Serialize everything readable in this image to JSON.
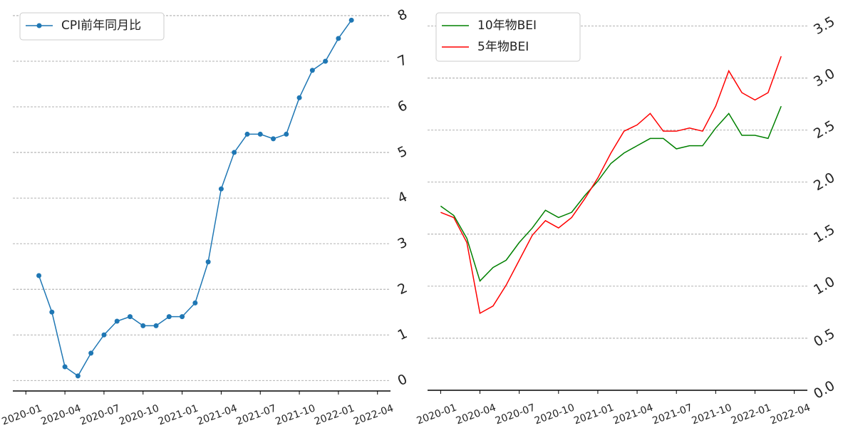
{
  "chart_data": [
    {
      "type": "line",
      "legend": "upper left",
      "grid": true,
      "x": [
        "2020-02",
        "2020-03",
        "2020-04",
        "2020-05",
        "2020-06",
        "2020-07",
        "2020-08",
        "2020-09",
        "2020-10",
        "2020-11",
        "2020-12",
        "2021-01",
        "2021-02",
        "2021-03",
        "2021-04",
        "2021-05",
        "2021-06",
        "2021-07",
        "2021-08",
        "2021-09",
        "2021-10",
        "2021-11",
        "2021-12",
        "2022-01",
        "2022-02"
      ],
      "series": [
        {
          "name": "CPI前年同月比",
          "color": "#1f77b4",
          "marker": "o",
          "values": [
            2.3,
            1.5,
            0.3,
            0.1,
            0.6,
            1.0,
            1.3,
            1.4,
            1.2,
            1.2,
            1.4,
            1.4,
            1.7,
            2.6,
            4.2,
            5.0,
            5.4,
            5.4,
            5.3,
            5.4,
            6.2,
            6.8,
            7.0,
            7.5,
            7.9
          ]
        }
      ],
      "xlim": [
        "2019-12",
        "2022-05"
      ],
      "xticks": [
        "2020-01",
        "2020-04",
        "2020-07",
        "2020-10",
        "2021-01",
        "2021-04",
        "2021-07",
        "2021-10",
        "2022-01",
        "2022-04"
      ],
      "ylim": [
        -0.23,
        8.03
      ],
      "yticks": [
        0,
        1,
        2,
        3,
        4,
        5,
        6,
        7,
        8
      ]
    },
    {
      "type": "line",
      "legend": "upper left",
      "grid": true,
      "x": [
        "2020-01",
        "2020-02",
        "2020-03",
        "2020-04",
        "2020-05",
        "2020-06",
        "2020-07",
        "2020-08",
        "2020-09",
        "2020-10",
        "2020-11",
        "2020-12",
        "2021-01",
        "2021-02",
        "2021-03",
        "2021-04",
        "2021-05",
        "2021-06",
        "2021-07",
        "2021-08",
        "2021-09",
        "2021-10",
        "2021-11",
        "2021-12",
        "2022-01",
        "2022-02",
        "2022-03"
      ],
      "series": [
        {
          "name": "10年物BEI",
          "color": "#008000",
          "values": [
            1.77,
            1.68,
            1.46,
            1.05,
            1.18,
            1.25,
            1.42,
            1.56,
            1.73,
            1.66,
            1.71,
            1.87,
            2.01,
            2.18,
            2.28,
            2.35,
            2.42,
            2.42,
            2.32,
            2.35,
            2.35,
            2.52,
            2.66,
            2.45,
            2.45,
            2.42,
            2.73
          ]
        },
        {
          "name": "5年物BEI",
          "color": "#ff0000",
          "values": [
            1.71,
            1.66,
            1.42,
            0.74,
            0.81,
            1.01,
            1.25,
            1.49,
            1.63,
            1.56,
            1.66,
            1.84,
            2.04,
            2.28,
            2.49,
            2.55,
            2.66,
            2.49,
            2.49,
            2.52,
            2.49,
            2.73,
            3.07,
            2.86,
            2.79,
            2.86,
            3.21
          ]
        }
      ],
      "xlim": [
        "2019-12",
        "2022-05"
      ],
      "xticks": [
        "2020-01",
        "2020-04",
        "2020-07",
        "2020-10",
        "2021-01",
        "2021-04",
        "2021-07",
        "2021-10",
        "2022-01",
        "2022-04"
      ],
      "ylim": [
        0,
        3.6
      ],
      "yticks": [
        {
          "value": 0,
          "label": "0.0"
        },
        {
          "value": 0.5,
          "label": "0.5"
        },
        {
          "value": 1,
          "label": "1.0"
        },
        {
          "value": 1.5,
          "label": "1.5"
        },
        {
          "value": 2,
          "label": "2.0"
        },
        {
          "value": 2.5,
          "label": "2.5"
        },
        {
          "value": 3,
          "label": "3.0"
        },
        {
          "value": 3.5,
          "label": "3.5"
        }
      ]
    }
  ]
}
